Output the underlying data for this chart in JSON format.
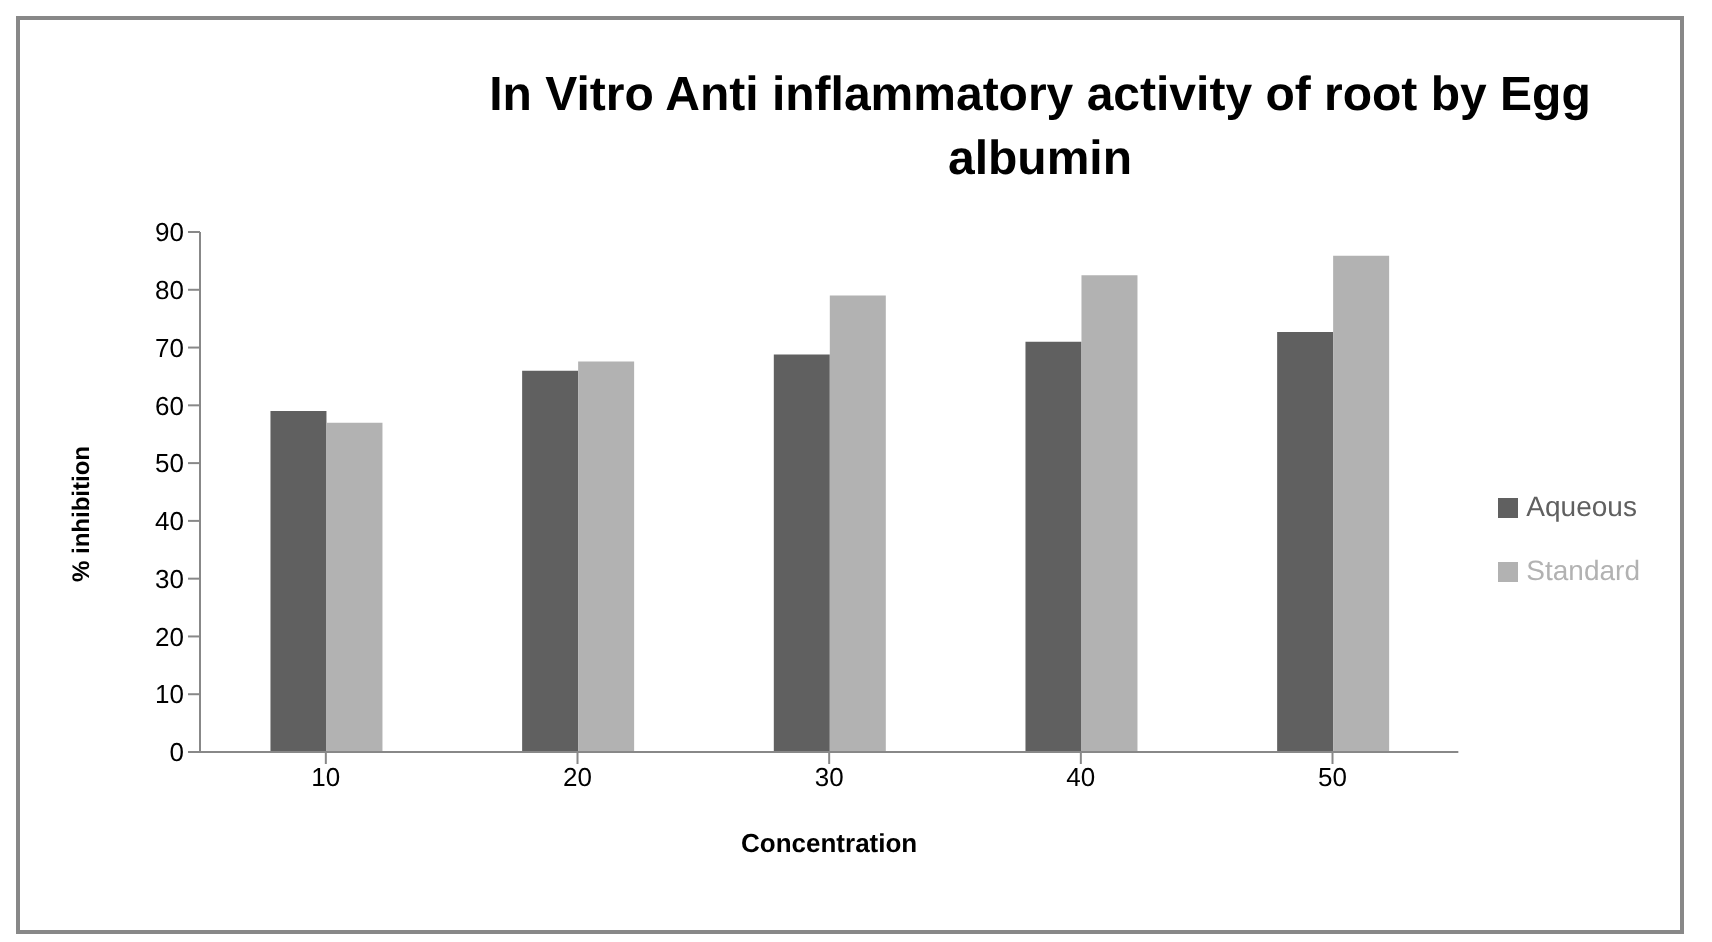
{
  "chart_data": {
    "type": "bar",
    "title": "In Vitro Anti inflammatory activity of root by Egg albumin",
    "xlabel": "Concentration",
    "ylabel": "% inhibition",
    "categories": [
      "10",
      "20",
      "30",
      "40",
      "50"
    ],
    "series": [
      {
        "name": "Aqueous",
        "color": "#606060",
        "values": [
          59,
          66,
          68.8,
          71,
          72.7
        ]
      },
      {
        "name": "Standard",
        "color": "#b2b2b2",
        "values": [
          57,
          67.6,
          79,
          82.5,
          85.9
        ]
      }
    ],
    "ylim": [
      0,
      90
    ],
    "yticks": [
      0,
      10,
      20,
      30,
      40,
      50,
      60,
      70,
      80,
      90
    ],
    "grid": false,
    "legend": "right"
  }
}
